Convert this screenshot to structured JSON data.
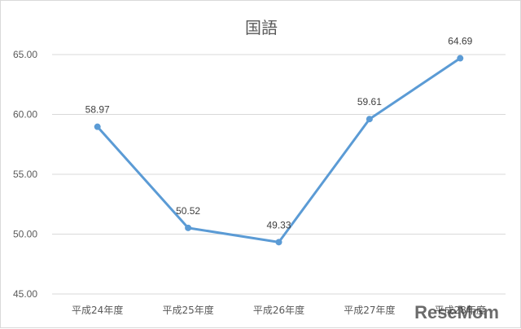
{
  "chart_data": {
    "type": "line",
    "title": "国語",
    "categories": [
      "平成24年度",
      "平成25年度",
      "平成26年度",
      "平成27年度",
      "平成28年度"
    ],
    "series": [
      {
        "values": [
          58.97,
          50.52,
          49.33,
          59.61,
          64.69
        ],
        "color": "#5b9bd5"
      }
    ],
    "ylim": [
      45,
      65
    ],
    "y_ticks": [
      "65.00",
      "60.00",
      "55.00",
      "50.00",
      "45.00"
    ],
    "grid": true,
    "legend": "none",
    "data_labels": [
      "58.97",
      "50.52",
      "49.33",
      "59.61",
      "64.69"
    ]
  },
  "watermark": {
    "text": "ReseMom"
  }
}
